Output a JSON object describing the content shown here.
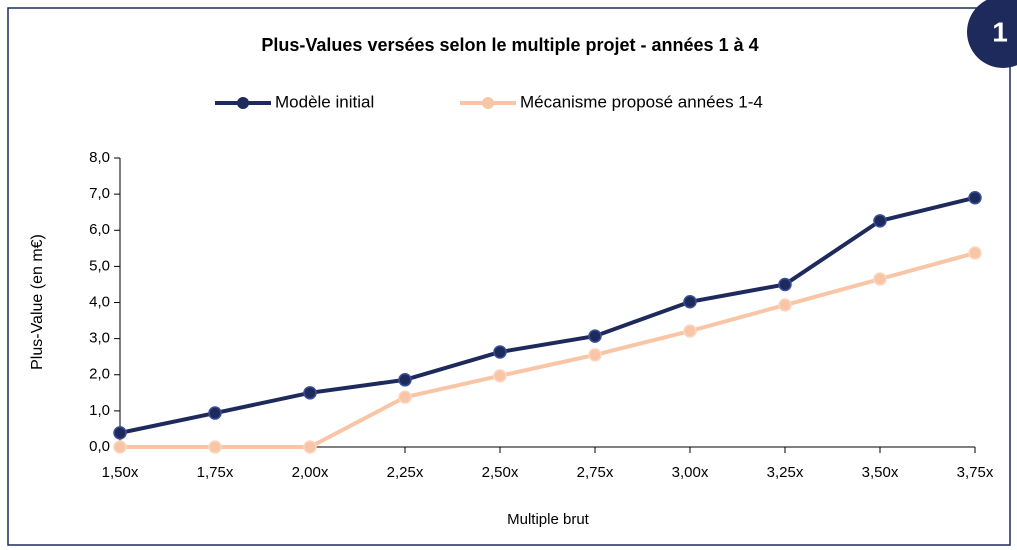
{
  "badge": "1",
  "chart_data": {
    "type": "line",
    "title": "Plus-Values versées selon le multiple projet - années 1 à 4",
    "x_label": "Multiple brut",
    "y_label": "Plus-Value (en m€)",
    "categories": [
      "1,50x",
      "1,75x",
      "2,00x",
      "2,25x",
      "2,50x",
      "2,75x",
      "3,00x",
      "3,25x",
      "3,50x",
      "3,75x"
    ],
    "series": [
      {
        "name": "Modèle initial",
        "color": "#1f2a5c",
        "values": [
          0.39,
          0.94,
          1.5,
          1.86,
          2.63,
          3.07,
          4.02,
          4.5,
          6.26,
          6.9
        ]
      },
      {
        "name": "Mécanisme proposé années 1-4",
        "color": "#f8c6a6",
        "values": [
          0,
          0,
          0,
          1.38,
          1.97,
          2.55,
          3.21,
          3.93,
          4.65,
          5.37
        ]
      }
    ],
    "ylim": [
      0,
      8
    ],
    "yticks": [
      {
        "value": 0,
        "label": "0,0"
      },
      {
        "value": 1,
        "label": "1,0"
      },
      {
        "value": 2,
        "label": "2,0"
      },
      {
        "value": 3,
        "label": "3,0"
      },
      {
        "value": 4,
        "label": "4,0"
      },
      {
        "value": 5,
        "label": "5,0"
      },
      {
        "value": 6,
        "label": "6,0"
      },
      {
        "value": 7,
        "label": "7,0"
      },
      {
        "value": 8,
        "label": "8,0"
      }
    ],
    "grid": false,
    "legend": "top"
  }
}
